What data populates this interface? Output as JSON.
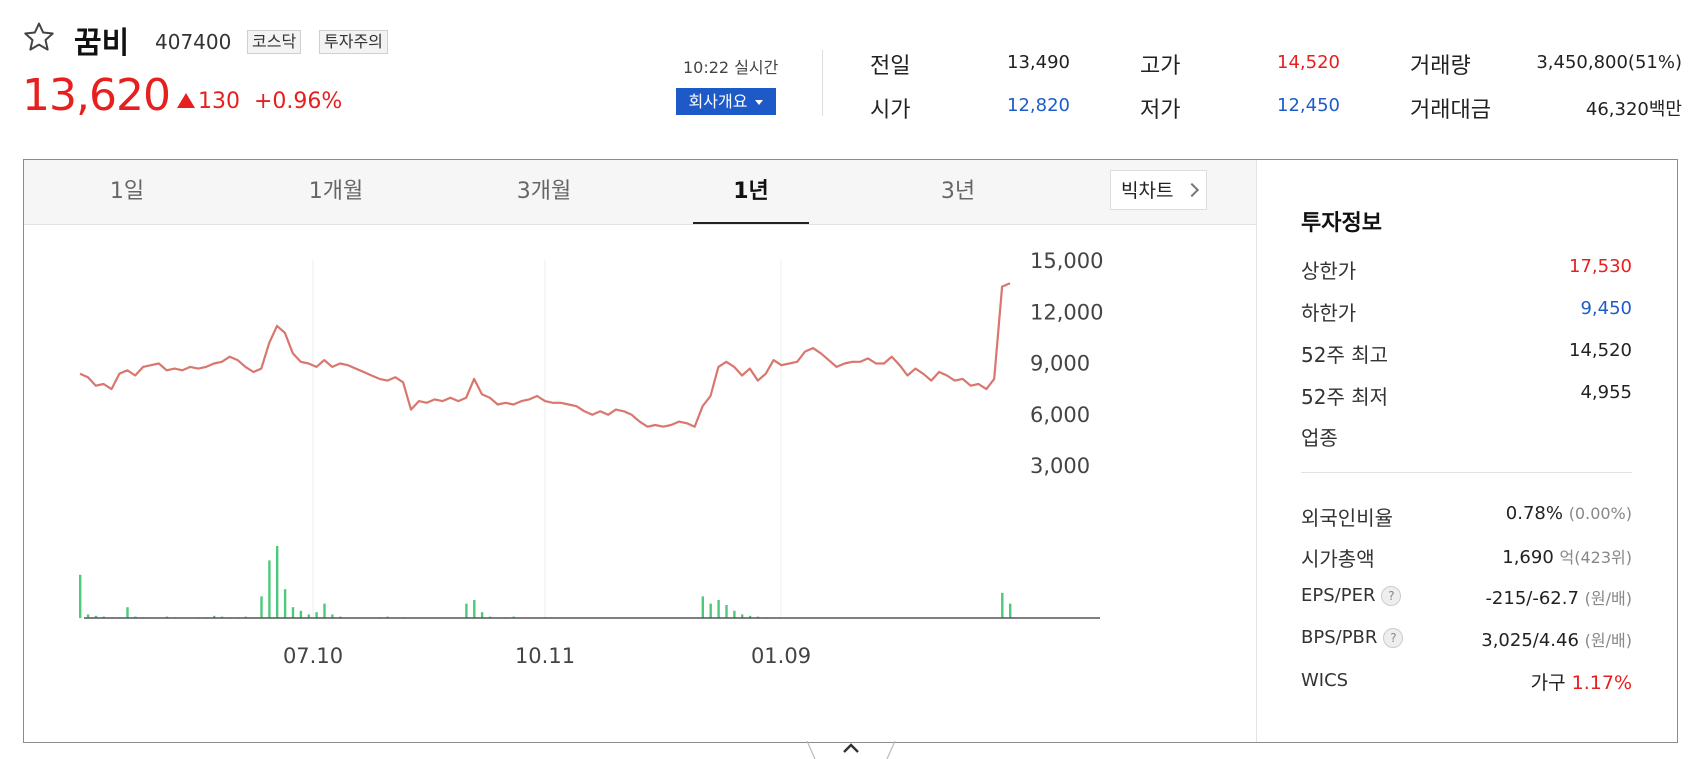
{
  "header": {
    "stock_name": "꿈비",
    "stock_code": "407400",
    "badges": [
      "코스닥",
      "투자주의"
    ],
    "current_price": "13,620",
    "change_amount": "130",
    "change_percent": "+0.96%",
    "time_label": "10:22 실시간",
    "company_button": "회사개요"
  },
  "quote": [
    {
      "label": "전일",
      "value": "13,490",
      "color": "#222222"
    },
    {
      "label": "시가",
      "value": "12,820",
      "color": "#1e5ccb"
    },
    {
      "label": "고가",
      "value": "14,520",
      "color": "#e5201f"
    },
    {
      "label": "저가",
      "value": "12,450",
      "color": "#1e5ccb"
    },
    {
      "label": "거래량",
      "value": "3,450,800(51%)",
      "color": "#222222"
    },
    {
      "label": "거래대금",
      "value": "46,320백만",
      "color": "#222222"
    }
  ],
  "tabs": [
    "1일",
    "1개월",
    "3개월",
    "1년",
    "3년"
  ],
  "active_tab": "1년",
  "big_chart_button": "빅차트",
  "chart_data": {
    "type": "line",
    "yticks": [
      "15,000",
      "12,000",
      "9,000",
      "6,000",
      "3,000"
    ],
    "ylim": [
      3000,
      15000
    ],
    "xticks": [
      "07.10",
      "10.11",
      "01.09"
    ],
    "price_series": [
      8400,
      8200,
      7700,
      7800,
      7500,
      8400,
      8600,
      8300,
      8800,
      8900,
      9000,
      8600,
      8700,
      8600,
      8800,
      8700,
      8800,
      9000,
      9100,
      9400,
      9200,
      8800,
      8500,
      8700,
      10200,
      11200,
      10800,
      9600,
      9100,
      9000,
      8800,
      9200,
      8800,
      9000,
      8900,
      8700,
      8500,
      8300,
      8100,
      8000,
      8200,
      7900,
      6300,
      6800,
      6700,
      6900,
      6800,
      7000,
      6800,
      7000,
      8100,
      7200,
      7000,
      6600,
      6700,
      6600,
      6800,
      6900,
      7100,
      6800,
      6700,
      6700,
      6600,
      6500,
      6200,
      6000,
      6200,
      6000,
      6300,
      6200,
      6000,
      5600,
      5300,
      5400,
      5300,
      5400,
      5600,
      5500,
      5300,
      6500,
      7100,
      8800,
      9100,
      8800,
      8300,
      8700,
      8000,
      8400,
      9200,
      8900,
      9000,
      9100,
      9700,
      9900,
      9600,
      9200,
      8800,
      9000,
      9100,
      9100,
      9300,
      9000,
      9000,
      9400,
      8900,
      8300,
      8700,
      8400,
      8000,
      8500,
      8300,
      8000,
      8100,
      7700,
      7800,
      7500,
      8100,
      13500,
      13700
    ],
    "volume_series": [
      60,
      5,
      3,
      2,
      1,
      1,
      15,
      2,
      1,
      0,
      0,
      2,
      1,
      0,
      0,
      1,
      1,
      3,
      2,
      1,
      1,
      2,
      1,
      30,
      80,
      100,
      40,
      15,
      10,
      5,
      8,
      20,
      5,
      2,
      0,
      0,
      0,
      0,
      1,
      2,
      0,
      1,
      0,
      0,
      0,
      0,
      0,
      0,
      0,
      20,
      25,
      8,
      2,
      0,
      1,
      2,
      0,
      0,
      0,
      1,
      0,
      0,
      0,
      0,
      0,
      0,
      0,
      0,
      0,
      0,
      0,
      0,
      0,
      0,
      0,
      0,
      0,
      0,
      0,
      30,
      20,
      25,
      18,
      10,
      5,
      3,
      2,
      1,
      0,
      0,
      0,
      0,
      0,
      0,
      0,
      0,
      0,
      0,
      0,
      0,
      0,
      0,
      0,
      0,
      0,
      0,
      0,
      0,
      0,
      0,
      0,
      0,
      0,
      0,
      0,
      0,
      0,
      35,
      20
    ]
  },
  "investment": {
    "title": "투자정보",
    "rows_top": [
      {
        "label": "상한가",
        "value": "17,530",
        "color": "#e5201f"
      },
      {
        "label": "하한가",
        "value": "9,450",
        "color": "#1e5ccb"
      },
      {
        "label": "52주 최고",
        "value": "14,520",
        "color": "#222222"
      },
      {
        "label": "52주 최저",
        "value": "4,955",
        "color": "#222222"
      },
      {
        "label": "업종",
        "value": "",
        "color": "#222222"
      }
    ],
    "foreign_ratio": {
      "label": "외국인비율",
      "value": "0.78%",
      "sub": "(0.00%)"
    },
    "market_cap": {
      "label": "시가총액",
      "value": "1,690",
      "unit": "억",
      "sub": "(423위)"
    },
    "eps_per": {
      "label": "EPS/PER",
      "value": "-215/-62.7",
      "sub": "(원/배)"
    },
    "bps_pbr": {
      "label": "BPS/PBR",
      "value": "3,025/4.46",
      "sub": "(원/배)"
    },
    "wics": {
      "label": "WICS",
      "sector": "가구",
      "change": "1.17%"
    }
  }
}
